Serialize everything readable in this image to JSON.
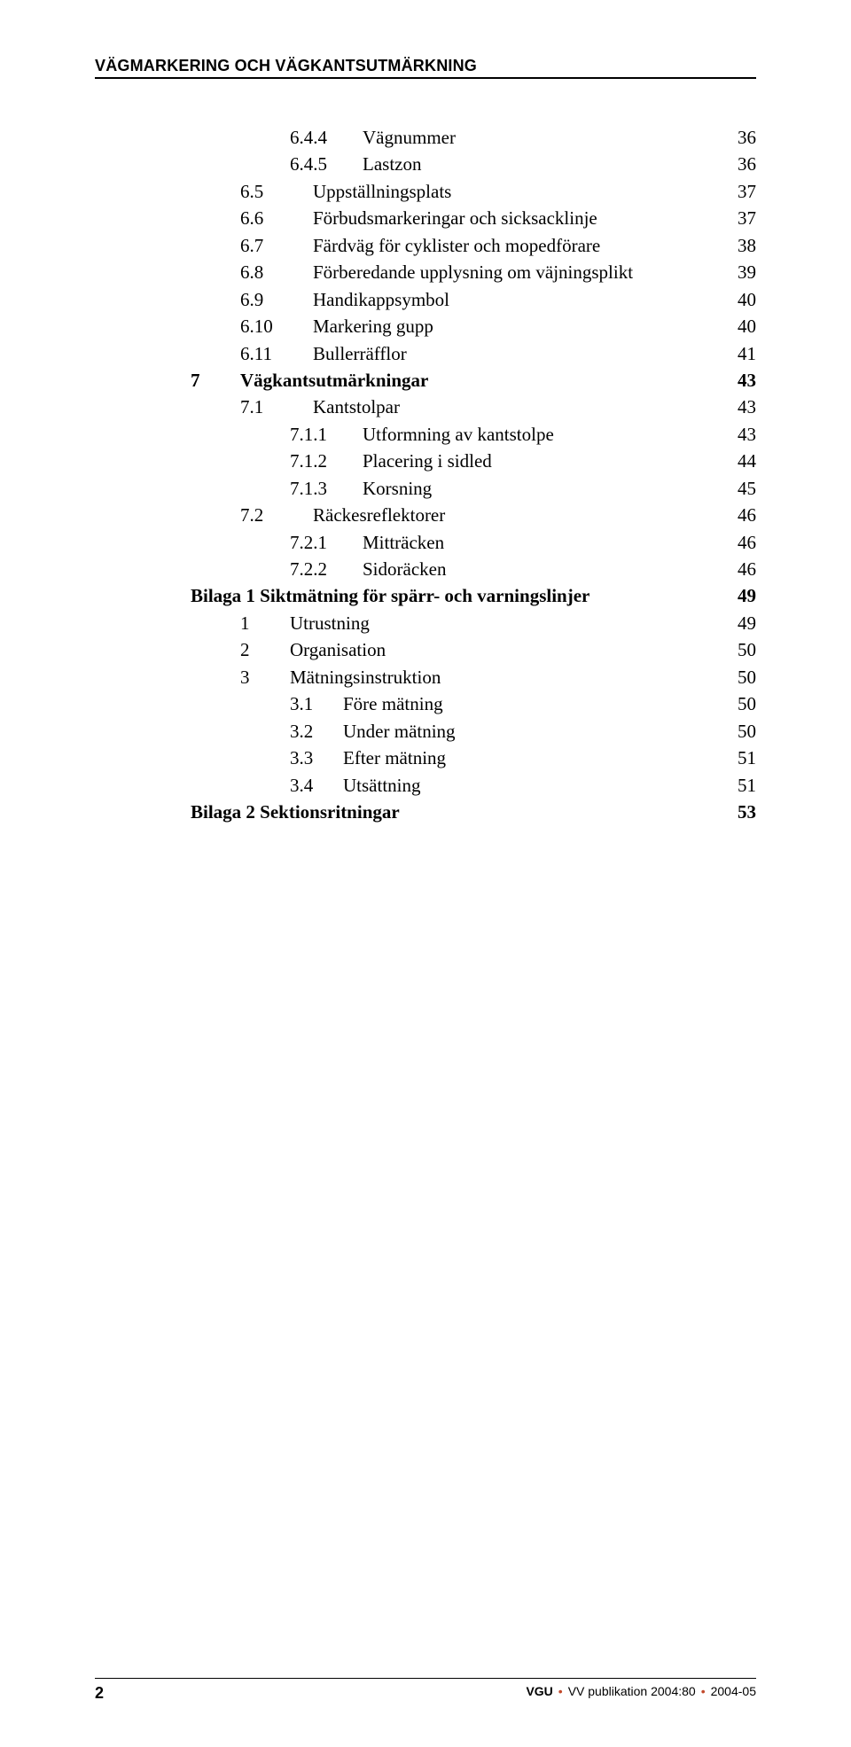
{
  "header": {
    "title": "VÄGMARKERING OCH VÄGKANTSUTMÄRKNING"
  },
  "toc": [
    {
      "indent": 2,
      "num": "6.4.4",
      "title": "Vägnummer",
      "page": "36",
      "bold": false,
      "numClass": "num-l3"
    },
    {
      "indent": 2,
      "num": "6.4.5",
      "title": "Lastzon",
      "page": "36",
      "bold": false,
      "numClass": "num-l3"
    },
    {
      "indent": 1,
      "num": "6.5",
      "title": "Uppställningsplats",
      "page": "37",
      "bold": false,
      "numClass": "num-l2"
    },
    {
      "indent": 1,
      "num": "6.6",
      "title": "Förbudsmarkeringar och sicksacklinje",
      "page": "37",
      "bold": false,
      "numClass": "num-l2"
    },
    {
      "indent": 1,
      "num": "6.7",
      "title": "Färdväg för cyklister och mopedförare",
      "page": "38",
      "bold": false,
      "numClass": "num-l2"
    },
    {
      "indent": 1,
      "num": "6.8",
      "title": "Förberedande upplysning om väjningsplikt",
      "page": "39",
      "bold": false,
      "numClass": "num-l2"
    },
    {
      "indent": 1,
      "num": "6.9",
      "title": "Handikappsymbol",
      "page": "40",
      "bold": false,
      "numClass": "num-l2"
    },
    {
      "indent": 1,
      "num": "6.10",
      "title": "Markering gupp",
      "page": "40",
      "bold": false,
      "numClass": "num-l2"
    },
    {
      "indent": 1,
      "num": "6.11",
      "title": "Bullerräfflor",
      "page": "41",
      "bold": false,
      "numClass": "num-l2"
    },
    {
      "indent": 0,
      "num": "7",
      "title": "Vägkantsutmärkningar",
      "page": "43",
      "bold": true,
      "numClass": "num-chap"
    },
    {
      "indent": 1,
      "num": "7.1",
      "title": "Kantstolpar",
      "page": "43",
      "bold": false,
      "numClass": "num-l2"
    },
    {
      "indent": 2,
      "num": "7.1.1",
      "title": "Utformning av kantstolpe",
      "page": "43",
      "bold": false,
      "numClass": "num-l3"
    },
    {
      "indent": 2,
      "num": "7.1.2",
      "title": "Placering i sidled",
      "page": "44",
      "bold": false,
      "numClass": "num-l3"
    },
    {
      "indent": 2,
      "num": "7.1.3",
      "title": "Korsning",
      "page": "45",
      "bold": false,
      "numClass": "num-l3"
    },
    {
      "indent": 1,
      "num": "7.2",
      "title": "Räckesreflektorer",
      "page": "46",
      "bold": false,
      "numClass": "num-l2"
    },
    {
      "indent": 2,
      "num": "7.2.1",
      "title": "Mitträcken",
      "page": "46",
      "bold": false,
      "numClass": "num-l3"
    },
    {
      "indent": 2,
      "num": "7.2.2",
      "title": "Sidoräcken",
      "page": "46",
      "bold": false,
      "numClass": "num-l3"
    },
    {
      "indent": 0,
      "num": "Bilaga 1 Siktmätning för spärr- och varningslinjer",
      "title": "",
      "page": "49",
      "bold": true,
      "numClass": "",
      "noNumWidth": true
    },
    {
      "indent": 1,
      "num": "1",
      "title": "Utrustning",
      "page": "49",
      "bold": false,
      "numClass": "num-att1"
    },
    {
      "indent": 1,
      "num": "2",
      "title": "Organisation",
      "page": "50",
      "bold": false,
      "numClass": "num-att1"
    },
    {
      "indent": 1,
      "num": "3",
      "title": "Mätningsinstruktion",
      "page": "50",
      "bold": false,
      "numClass": "num-att1"
    },
    {
      "indent": 2,
      "num": "3.1",
      "title": "Före mätning",
      "page": "50",
      "bold": false,
      "numClass": "num-att2"
    },
    {
      "indent": 2,
      "num": "3.2",
      "title": "Under mätning",
      "page": "50",
      "bold": false,
      "numClass": "num-att2"
    },
    {
      "indent": 2,
      "num": "3.3",
      "title": "Efter mätning",
      "page": "51",
      "bold": false,
      "numClass": "num-att2"
    },
    {
      "indent": 2,
      "num": "3.4",
      "title": "Utsättning",
      "page": "51",
      "bold": false,
      "numClass": "num-att2"
    },
    {
      "indent": 0,
      "num": "Bilaga 2 Sektionsritningar",
      "title": "",
      "page": "53",
      "bold": true,
      "numClass": "",
      "noNumWidth": true
    }
  ],
  "footer": {
    "page_number": "2",
    "vgu": "VGU",
    "publication": "VV publikation 2004:80",
    "date": "2004-05"
  },
  "colors": {
    "text": "#000000",
    "background": "#ffffff",
    "footer_dot": "#c24a2c"
  }
}
